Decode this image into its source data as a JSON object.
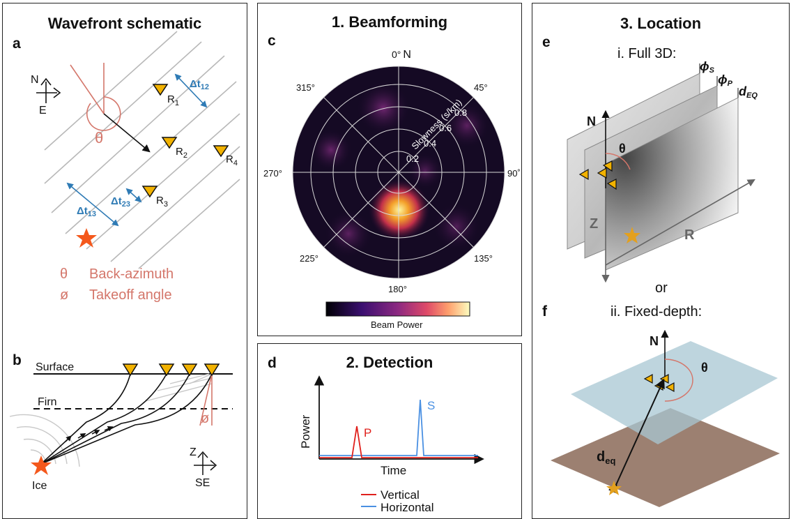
{
  "wavefront": {
    "title": "Wavefront schematic",
    "label_a": "a",
    "label_b": "b",
    "compass_n": "N",
    "compass_e": "E",
    "theta": "θ",
    "receivers": {
      "r1": "R",
      "r1_sub": "1",
      "r2": "R",
      "r2_sub": "2",
      "r3": "R",
      "r3_sub": "3",
      "r4": "R",
      "r4_sub": "4"
    },
    "dt12": "Δt",
    "dt12_sub": "12",
    "dt13": "Δt",
    "dt13_sub": "13",
    "dt23": "Δt",
    "dt23_sub": "23",
    "legend_theta_symbol": "θ",
    "legend_theta_label": "Back-azimuth",
    "legend_phi_symbol": "ø",
    "legend_phi_label": "Takeoff angle",
    "surface": "Surface",
    "firn": "Firn",
    "ice": "Ice",
    "phi": "ø",
    "compass_z": "Z",
    "compass_se": "SE",
    "colors": {
      "accent": "#d4766a",
      "blue": "#2f7bb5",
      "receiver": "#f2b200",
      "star": "#f4581c"
    }
  },
  "beamforming": {
    "title": "1. Beamforming",
    "label_c": "c",
    "az_0": "0°",
    "az_n": "N",
    "az_45": "45°",
    "az_90": "90˚",
    "az_135": "135°",
    "az_180": "180°",
    "az_225": "225°",
    "az_270": "270°",
    "az_315": "315°",
    "slowness_label": "Slowness (s/km)",
    "ticks": [
      "0.2",
      "0.4",
      "0.6",
      "0.8"
    ],
    "colorbar_label": "Beam Power"
  },
  "detection": {
    "title": "2. Detection",
    "label_d": "d",
    "ylabel": "Power",
    "xlabel": "Time",
    "p_label": "P",
    "s_label": "S",
    "legend_vertical": "Vertical",
    "legend_horizontal": "Horizontal",
    "colors": {
      "vertical": "#e0201c",
      "horizontal": "#4a90e2"
    }
  },
  "location": {
    "title": "3. Location",
    "label_e": "e",
    "label_f": "f",
    "full3d": "i. Full 3D:",
    "phi_s": "ϕ",
    "phi_s_sub": "S",
    "phi_p": "ϕ",
    "phi_p_sub": "P",
    "d_eq_upper": "d",
    "d_eq_upper_sub": "EQ",
    "n": "N",
    "theta": "θ",
    "z": "Z",
    "r": "R",
    "or": "or",
    "fixed_depth": "ii. Fixed-depth:",
    "n2": "N",
    "theta2": "θ",
    "d_eq_lower": "d",
    "d_eq_lower_sub": "eq"
  }
}
